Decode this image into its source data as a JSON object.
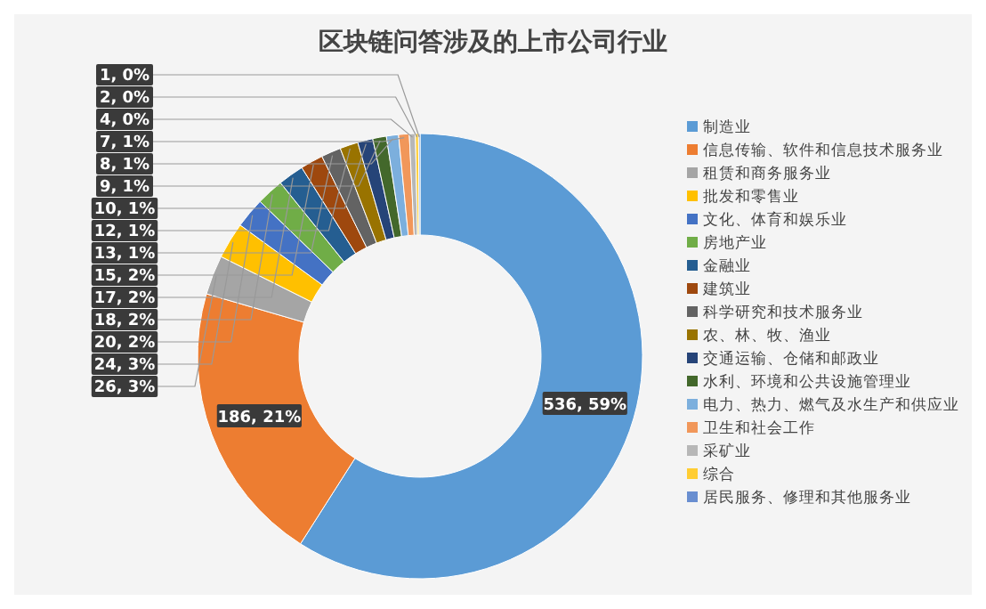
{
  "chart_data": {
    "type": "donut",
    "title": "区块链问答涉及的上市公司行业",
    "categories": [
      "制造业",
      "信息传输、软件和信息技术服务业",
      "租赁和商务服务业",
      "批发和零售业",
      "文化、体育和娱乐业",
      "房地产业",
      "金融业",
      "建筑业",
      "科学研究和技术服务业",
      "农、林、牧、渔业",
      "交通运输、仓储和邮政业",
      "水利、环境和公共设施管理业",
      "电力、热力、燃气及水生产和供应业",
      "卫生和社会工作",
      "采矿业",
      "综合",
      "居民服务、修理和其他服务业"
    ],
    "values": [
      536,
      186,
      26,
      24,
      20,
      18,
      17,
      15,
      13,
      12,
      10,
      9,
      8,
      7,
      4,
      2,
      1
    ],
    "value_labels": [
      "536, 59%",
      "186, 21%",
      "26, 3%",
      "24, 3%",
      "20, 2%",
      "18, 2%",
      "17, 2%",
      "15, 2%",
      "13, 1%",
      "12, 1%",
      "10, 1%",
      "9, 1%",
      "8, 1%",
      "7, 1%",
      "4, 0%",
      "2, 0%",
      "1, 0%"
    ],
    "colors": [
      "#5b9bd5",
      "#ed7d31",
      "#a5a5a5",
      "#ffc000",
      "#4472c4",
      "#70ad47",
      "#255e91",
      "#9e480e",
      "#636363",
      "#997300",
      "#264478",
      "#43682b",
      "#7cafdd",
      "#f1975a",
      "#b7b7b7",
      "#ffcd33",
      "#698ed0"
    ],
    "legend": "right"
  }
}
